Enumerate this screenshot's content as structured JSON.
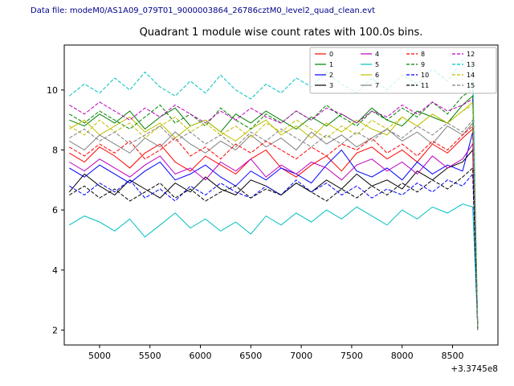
{
  "header": {
    "data_file": "Data file: modeM0/AS1A09_079T01_9000003864_26786cztM0_level2_quad_clean.evt"
  },
  "chart_data": {
    "type": "line",
    "title": "Quadrant 1 module wise count rates with 100.0s bins.",
    "xlabel": "",
    "ylabel": "",
    "x_offset_label": "+3.3745e8",
    "xlim": [
      4650,
      8950
    ],
    "ylim": [
      1.5,
      11.5
    ],
    "xticks": [
      5000,
      5500,
      6000,
      6500,
      7000,
      7500,
      8000,
      8500
    ],
    "yticks": [
      2,
      4,
      6,
      8,
      10
    ],
    "grid": false,
    "legend_position": "upper right",
    "x": [
      4700,
      4850,
      5000,
      5150,
      5300,
      5450,
      5600,
      5750,
      5900,
      6050,
      6200,
      6350,
      6500,
      6650,
      6800,
      6950,
      7100,
      7250,
      7400,
      7550,
      7700,
      7850,
      8000,
      8150,
      8300,
      8450,
      8600,
      8700,
      8750
    ],
    "series": [
      {
        "name": "0",
        "color": "#ff0000",
        "style": "solid",
        "values": [
          7.9,
          7.6,
          8.1,
          7.8,
          7.4,
          7.9,
          8.2,
          7.6,
          7.3,
          7.8,
          7.5,
          7.2,
          7.7,
          8.0,
          7.4,
          7.1,
          7.5,
          7.8,
          7.3,
          7.9,
          8.1,
          7.7,
          8.0,
          7.6,
          8.2,
          7.9,
          8.4,
          8.7,
          2.0
        ]
      },
      {
        "name": "1",
        "color": "#008000",
        "style": "solid",
        "values": [
          9.0,
          8.8,
          9.2,
          8.9,
          9.3,
          8.7,
          9.1,
          9.4,
          8.8,
          9.0,
          8.6,
          9.2,
          8.9,
          9.3,
          9.0,
          8.7,
          9.1,
          8.8,
          9.2,
          8.9,
          9.4,
          9.0,
          8.8,
          9.3,
          9.1,
          8.9,
          9.5,
          9.8,
          2.0
        ]
      },
      {
        "name": "2",
        "color": "#0000ff",
        "style": "solid",
        "values": [
          7.4,
          7.1,
          7.5,
          7.2,
          6.9,
          7.3,
          7.6,
          7.0,
          7.2,
          7.5,
          7.1,
          6.8,
          7.3,
          7.0,
          7.4,
          7.2,
          6.9,
          7.5,
          8.0,
          7.3,
          7.1,
          7.4,
          7.0,
          7.6,
          7.2,
          7.5,
          7.3,
          8.6,
          2.0
        ]
      },
      {
        "name": "3",
        "color": "#000000",
        "style": "solid",
        "values": [
          6.6,
          7.2,
          6.8,
          6.5,
          7.0,
          6.7,
          6.4,
          6.9,
          6.6,
          7.1,
          6.7,
          6.5,
          7.0,
          6.8,
          6.5,
          6.9,
          6.6,
          7.0,
          6.7,
          7.2,
          6.8,
          7.0,
          6.7,
          7.3,
          7.0,
          7.4,
          7.6,
          8.0,
          2.0
        ]
      },
      {
        "name": "4",
        "color": "#bf00bf",
        "style": "solid",
        "values": [
          7.6,
          7.3,
          7.7,
          7.4,
          7.1,
          7.5,
          7.8,
          7.2,
          7.4,
          7.0,
          7.6,
          7.3,
          7.7,
          7.1,
          7.5,
          7.2,
          7.6,
          7.4,
          7.0,
          7.5,
          7.7,
          7.3,
          7.6,
          7.2,
          7.8,
          7.4,
          7.7,
          8.2,
          2.0
        ]
      },
      {
        "name": "5",
        "color": "#00bfbf",
        "style": "solid",
        "values": [
          5.5,
          5.8,
          5.6,
          5.3,
          5.7,
          5.1,
          5.5,
          5.9,
          5.4,
          5.7,
          5.3,
          5.6,
          5.2,
          5.8,
          5.5,
          5.9,
          5.6,
          6.0,
          5.7,
          6.1,
          5.8,
          5.5,
          6.0,
          5.7,
          6.1,
          5.9,
          6.2,
          6.1,
          2.0
        ]
      },
      {
        "name": "6",
        "color": "#bfbf00",
        "style": "solid",
        "values": [
          8.7,
          9.0,
          8.5,
          8.8,
          9.1,
          8.6,
          8.9,
          8.4,
          8.8,
          9.0,
          8.6,
          8.3,
          8.7,
          9.0,
          8.5,
          8.8,
          8.4,
          8.9,
          8.6,
          9.0,
          8.7,
          8.5,
          9.1,
          8.8,
          9.2,
          8.9,
          9.3,
          9.6,
          2.0
        ]
      },
      {
        "name": "7",
        "color": "#808080",
        "style": "solid",
        "values": [
          8.3,
          8.0,
          8.5,
          8.2,
          7.9,
          8.4,
          8.1,
          8.6,
          8.2,
          7.9,
          8.3,
          8.0,
          8.5,
          8.1,
          8.4,
          8.0,
          8.6,
          8.2,
          8.5,
          8.1,
          8.4,
          8.7,
          8.3,
          8.6,
          8.2,
          8.8,
          8.5,
          8.9,
          2.0
        ]
      },
      {
        "name": "8",
        "color": "#ff0000",
        "style": "dashed",
        "values": [
          8.1,
          7.8,
          8.2,
          7.9,
          8.3,
          7.7,
          8.0,
          8.4,
          7.8,
          8.1,
          7.7,
          8.2,
          7.9,
          8.3,
          8.0,
          7.7,
          8.1,
          7.8,
          8.2,
          8.0,
          8.4,
          7.9,
          8.2,
          7.8,
          8.3,
          8.0,
          8.5,
          8.8,
          2.0
        ]
      },
      {
        "name": "9",
        "color": "#008000",
        "style": "dashed",
        "values": [
          9.2,
          8.9,
          9.3,
          9.0,
          8.7,
          9.1,
          9.5,
          8.9,
          9.2,
          8.8,
          9.4,
          9.0,
          8.7,
          9.2,
          8.9,
          9.3,
          9.0,
          9.5,
          9.1,
          8.8,
          9.3,
          9.0,
          9.4,
          9.1,
          9.6,
          9.2,
          9.8,
          10.0,
          2.0
        ]
      },
      {
        "name": "10",
        "color": "#0000ff",
        "style": "dashed",
        "values": [
          6.8,
          6.5,
          6.9,
          6.6,
          7.0,
          6.4,
          6.7,
          6.3,
          6.8,
          6.5,
          6.9,
          6.6,
          6.4,
          6.8,
          6.5,
          7.0,
          6.6,
          6.9,
          6.5,
          6.8,
          6.4,
          6.7,
          6.5,
          6.9,
          6.6,
          7.0,
          6.8,
          7.2,
          2.0
        ]
      },
      {
        "name": "11",
        "color": "#000000",
        "style": "dashed",
        "values": [
          6.5,
          6.8,
          6.4,
          6.7,
          6.3,
          6.6,
          6.9,
          6.4,
          6.7,
          6.3,
          6.6,
          6.8,
          6.4,
          6.7,
          6.5,
          6.9,
          6.6,
          6.3,
          6.7,
          6.4,
          6.8,
          6.5,
          6.9,
          6.6,
          7.0,
          6.7,
          7.1,
          7.4,
          2.0
        ]
      },
      {
        "name": "12",
        "color": "#bf00bf",
        "style": "dashed",
        "values": [
          9.5,
          9.2,
          9.6,
          9.3,
          9.0,
          9.4,
          9.1,
          9.5,
          9.2,
          8.9,
          9.3,
          9.0,
          9.4,
          9.1,
          8.9,
          9.3,
          9.0,
          9.4,
          9.2,
          8.9,
          9.3,
          9.1,
          9.5,
          9.2,
          9.6,
          9.3,
          9.5,
          9.7,
          2.0
        ]
      },
      {
        "name": "13",
        "color": "#00bfbf",
        "style": "dashed",
        "values": [
          9.8,
          10.2,
          9.9,
          10.4,
          10.0,
          10.6,
          10.1,
          9.8,
          10.3,
          9.9,
          10.5,
          10.0,
          9.7,
          10.2,
          9.9,
          10.4,
          10.1,
          10.6,
          10.2,
          9.9,
          10.4,
          10.0,
          10.5,
          10.2,
          10.7,
          10.3,
          11.0,
          10.8,
          2.0
        ]
      },
      {
        "name": "14",
        "color": "#bfbf00",
        "style": "dashed",
        "values": [
          8.8,
          8.5,
          9.0,
          8.6,
          8.9,
          8.4,
          8.8,
          9.1,
          8.6,
          8.9,
          8.5,
          8.8,
          8.4,
          8.9,
          8.6,
          9.0,
          8.7,
          8.4,
          8.8,
          8.5,
          9.0,
          8.7,
          9.1,
          8.8,
          9.2,
          8.9,
          9.3,
          9.5,
          2.0
        ]
      },
      {
        "name": "15",
        "color": "#808080",
        "style": "dashed",
        "values": [
          8.4,
          8.7,
          8.3,
          8.6,
          8.2,
          8.5,
          8.8,
          8.3,
          8.6,
          8.2,
          8.5,
          8.1,
          8.6,
          8.3,
          8.7,
          8.4,
          8.1,
          8.5,
          8.2,
          8.6,
          8.3,
          8.7,
          8.4,
          8.8,
          8.5,
          8.9,
          8.6,
          9.0,
          2.0
        ]
      }
    ]
  }
}
